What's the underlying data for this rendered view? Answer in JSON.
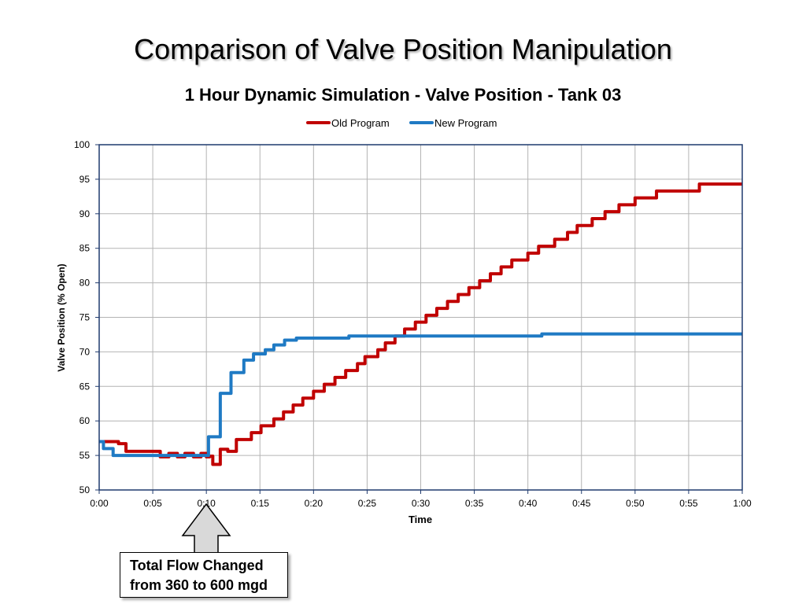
{
  "slide_title": "Comparison of Valve Position Manipulation",
  "callout": {
    "line1": "Total Flow Changed",
    "line2": "from 360 to 600 mgd"
  },
  "colors": {
    "old": "#c00000",
    "new": "#1f7ac4",
    "grid": "#b4b4b4",
    "axis": "#1f3a6e"
  },
  "chart_data": {
    "type": "line",
    "title": "1 Hour Dynamic Simulation - Valve Position - Tank 03",
    "xlabel": "Time",
    "ylabel": "Valve Position (% Open)",
    "xlim": [
      0,
      60
    ],
    "ylim": [
      50,
      100
    ],
    "x_ticks": [
      "0:00",
      "0:05",
      "0:10",
      "0:15",
      "0:20",
      "0:25",
      "0:30",
      "0:35",
      "0:40",
      "0:45",
      "0:50",
      "0:55",
      "1:00"
    ],
    "y_ticks": [
      50,
      55,
      60,
      65,
      70,
      75,
      80,
      85,
      90,
      95,
      100
    ],
    "grid": true,
    "legend_position": "top-center",
    "x_unit": "minutes",
    "series": [
      {
        "name": "Old Program",
        "color": "#c00000",
        "step": true,
        "points": [
          [
            0,
            57
          ],
          [
            1.8,
            56.7
          ],
          [
            2.5,
            55.6
          ],
          [
            5.7,
            54.8
          ],
          [
            6.5,
            55.3
          ],
          [
            7.3,
            54.8
          ],
          [
            8,
            55.3
          ],
          [
            8.8,
            54.8
          ],
          [
            9.5,
            55.3
          ],
          [
            10,
            54.8
          ],
          [
            10.3,
            54.9
          ],
          [
            10.6,
            53.7
          ],
          [
            11.3,
            55.9
          ],
          [
            12,
            55.6
          ],
          [
            12.8,
            57.3
          ],
          [
            14.2,
            58.3
          ],
          [
            15.1,
            59.3
          ],
          [
            16.3,
            60.3
          ],
          [
            17.2,
            61.3
          ],
          [
            18.1,
            62.3
          ],
          [
            19,
            63.3
          ],
          [
            20,
            64.3
          ],
          [
            21,
            65.3
          ],
          [
            22,
            66.3
          ],
          [
            23,
            67.3
          ],
          [
            24.1,
            68.3
          ],
          [
            24.8,
            69.3
          ],
          [
            26,
            70.3
          ],
          [
            26.7,
            71.3
          ],
          [
            27.6,
            72.3
          ],
          [
            28.5,
            73.3
          ],
          [
            29.5,
            74.3
          ],
          [
            30.5,
            75.3
          ],
          [
            31.5,
            76.3
          ],
          [
            32.5,
            77.3
          ],
          [
            33.5,
            78.3
          ],
          [
            34.5,
            79.3
          ],
          [
            35.5,
            80.3
          ],
          [
            36.5,
            81.3
          ],
          [
            37.5,
            82.3
          ],
          [
            38.5,
            83.3
          ],
          [
            40,
            84.3
          ],
          [
            41,
            85.3
          ],
          [
            42.5,
            86.3
          ],
          [
            43.7,
            87.3
          ],
          [
            44.6,
            88.3
          ],
          [
            46,
            89.3
          ],
          [
            47.2,
            90.3
          ],
          [
            48.5,
            91.3
          ],
          [
            50,
            92.3
          ],
          [
            52,
            93.3
          ],
          [
            56,
            94.3
          ],
          [
            60,
            94.3
          ]
        ]
      },
      {
        "name": "New Program",
        "color": "#1f7ac4",
        "step": true,
        "points": [
          [
            0,
            57
          ],
          [
            0.4,
            56
          ],
          [
            1.3,
            55
          ],
          [
            10.2,
            57.7
          ],
          [
            11.3,
            64
          ],
          [
            12.3,
            67
          ],
          [
            13.5,
            68.8
          ],
          [
            14.4,
            69.7
          ],
          [
            15.5,
            70.3
          ],
          [
            16.3,
            71
          ],
          [
            17.3,
            71.7
          ],
          [
            18.4,
            72
          ],
          [
            23.3,
            72.3
          ],
          [
            41.3,
            72.6
          ],
          [
            60,
            72.6
          ]
        ]
      }
    ]
  }
}
